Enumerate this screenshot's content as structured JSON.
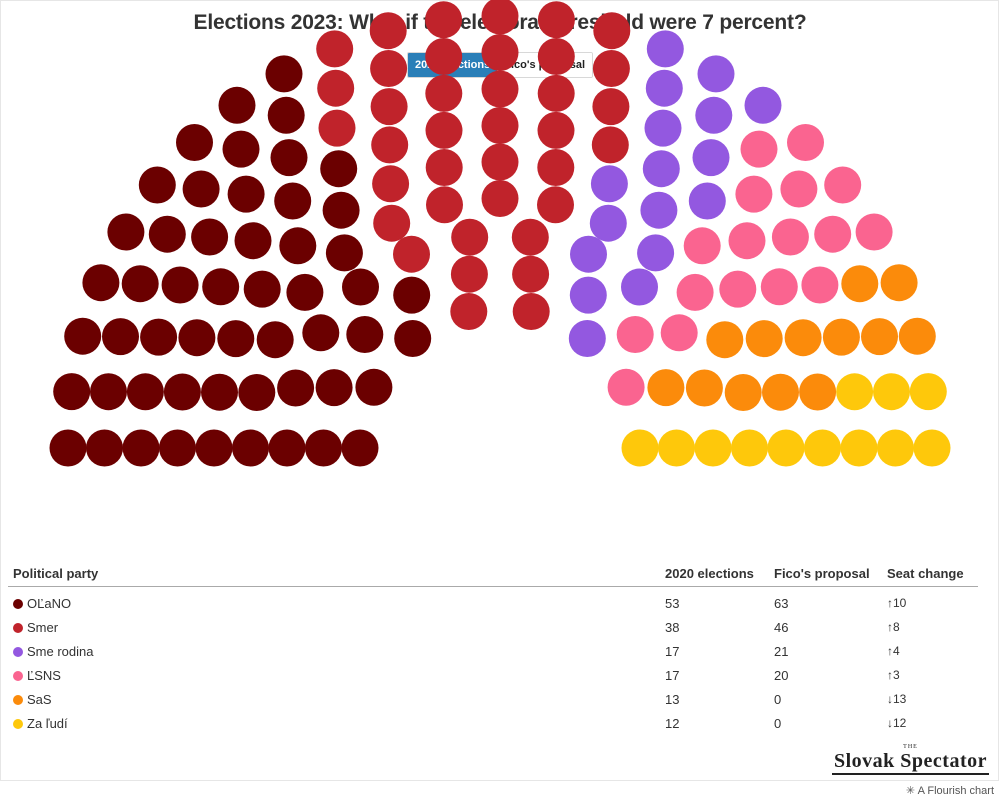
{
  "title": "Elections 2023: What if the electoral threshold were 7 percent?",
  "toggle": {
    "options": [
      "2020 elections",
      "Fico's proposal"
    ],
    "active": 0
  },
  "chart_data": {
    "type": "parliament",
    "total_seats": 150,
    "active_scenario": "2020 elections",
    "parties": [
      {
        "name": "OĽaNO",
        "color": "#6b0000",
        "seats_2020": 53,
        "seats_proposal": 63,
        "change": 10
      },
      {
        "name": "Smer",
        "color": "#c0232b",
        "seats_2020": 38,
        "seats_proposal": 46,
        "change": 8
      },
      {
        "name": "Sme rodina",
        "color": "#9358e0",
        "seats_2020": 17,
        "seats_proposal": 21,
        "change": 4
      },
      {
        "name": "ĽSNS",
        "color": "#fa6490",
        "seats_2020": 17,
        "seats_proposal": 20,
        "change": 3
      },
      {
        "name": "SaS",
        "color": "#fb8b0b",
        "seats_2020": 13,
        "seats_proposal": 0,
        "change": -13
      },
      {
        "name": "Za ľudí",
        "color": "#fec80b",
        "seats_2020": 12,
        "seats_proposal": 0,
        "change": -12
      }
    ]
  },
  "table": {
    "headers": [
      "Political party",
      "2020 elections",
      "Fico's proposal",
      "Seat change"
    ],
    "rows": [
      {
        "party": "OĽaNO",
        "color": "#6b0000",
        "v2020": "53",
        "proposal": "63",
        "dir": "up",
        "change": "↑10"
      },
      {
        "party": "Smer",
        "color": "#c0232b",
        "v2020": "38",
        "proposal": "46",
        "dir": "up",
        "change": "↑8"
      },
      {
        "party": "Sme rodina",
        "color": "#9358e0",
        "v2020": "17",
        "proposal": "21",
        "dir": "up",
        "change": "↑4"
      },
      {
        "party": "ĽSNS",
        "color": "#fa6490",
        "v2020": "17",
        "proposal": "20",
        "dir": "up",
        "change": "↑3"
      },
      {
        "party": "SaS",
        "color": "#fb8b0b",
        "v2020": "13",
        "proposal": "0",
        "dir": "down",
        "change": "↓13"
      },
      {
        "party": "Za ľudí",
        "color": "#fec80b",
        "v2020": "12",
        "proposal": "0",
        "dir": "down",
        "change": "↓12"
      }
    ]
  },
  "logo": {
    "the": "THE",
    "name": "Slovak Spectator"
  },
  "credit": "A Flourish chart"
}
